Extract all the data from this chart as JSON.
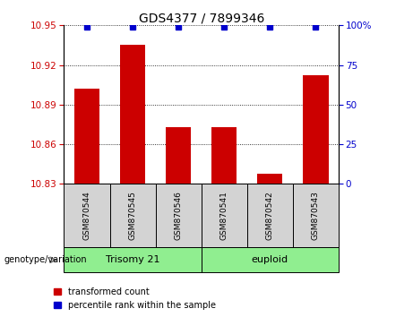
{
  "title": "GDS4377 / 7899346",
  "samples": [
    "GSM870544",
    "GSM870545",
    "GSM870546",
    "GSM870541",
    "GSM870542",
    "GSM870543"
  ],
  "bar_values": [
    10.902,
    10.935,
    10.873,
    10.873,
    10.838,
    10.912
  ],
  "percentile_values": [
    99,
    99,
    99,
    99,
    99,
    99
  ],
  "ylim_left": [
    10.83,
    10.95
  ],
  "ylim_right": [
    0,
    100
  ],
  "yticks_left": [
    10.83,
    10.86,
    10.89,
    10.92,
    10.95
  ],
  "yticks_right": [
    0,
    25,
    50,
    75,
    100
  ],
  "bar_color": "#cc0000",
  "dot_color": "#0000cc",
  "group_labels": [
    "Trisomy 21",
    "euploid"
  ],
  "group_ranges": [
    [
      0,
      3
    ],
    [
      3,
      6
    ]
  ],
  "group_color": "#90ee90",
  "tick_label_area_color": "#d3d3d3",
  "legend_items": [
    {
      "label": "transformed count",
      "color": "#cc0000"
    },
    {
      "label": "percentile rank within the sample",
      "color": "#0000cc"
    }
  ],
  "genotype_label": "genotype/variation"
}
